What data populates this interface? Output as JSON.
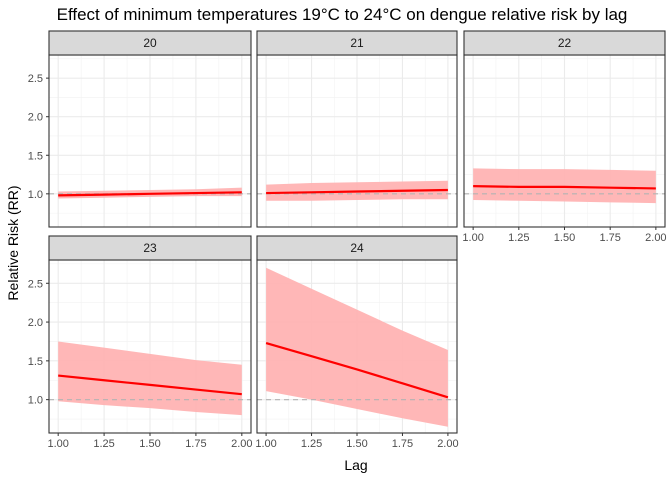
{
  "chart_data": {
    "type": "line",
    "title": "Effect of minimum temperatures 19°C to 24°C on dengue relative risk by lag",
    "xlabel": "Lag",
    "ylabel": "Relative Risk (RR)",
    "xlim": [
      0.95,
      2.05
    ],
    "ylim": [
      0.57,
      2.8
    ],
    "x_ticks": [
      "1.00",
      "1.25",
      "1.50",
      "1.75",
      "2.00"
    ],
    "y_ticks": [
      "1.0",
      "1.5",
      "2.0",
      "2.5"
    ],
    "reference_line": 1.0,
    "grid": true,
    "colors": {
      "fit": "#ff0000",
      "ribbon": "#ffb3b3",
      "reference": "#b3b3b3",
      "strip": "#d9d9d9"
    },
    "x": [
      1.0,
      1.25,
      1.5,
      1.75,
      2.0
    ],
    "panels": [
      {
        "label": "20",
        "fit": [
          0.98,
          0.99,
          1.0,
          1.01,
          1.02
        ],
        "upper": [
          1.03,
          1.04,
          1.05,
          1.06,
          1.08
        ],
        "lower": [
          0.94,
          0.95,
          0.96,
          0.97,
          0.97
        ]
      },
      {
        "label": "21",
        "fit": [
          1.01,
          1.02,
          1.03,
          1.04,
          1.05
        ],
        "upper": [
          1.12,
          1.14,
          1.15,
          1.16,
          1.17
        ],
        "lower": [
          0.91,
          0.91,
          0.92,
          0.93,
          0.93
        ]
      },
      {
        "label": "22",
        "fit": [
          1.1,
          1.09,
          1.09,
          1.08,
          1.07
        ],
        "upper": [
          1.33,
          1.32,
          1.32,
          1.31,
          1.3
        ],
        "lower": [
          0.92,
          0.91,
          0.9,
          0.89,
          0.88
        ]
      },
      {
        "label": "23",
        "fit": [
          1.31,
          1.25,
          1.19,
          1.13,
          1.07
        ],
        "upper": [
          1.75,
          1.67,
          1.59,
          1.51,
          1.45
        ],
        "lower": [
          0.98,
          0.93,
          0.89,
          0.84,
          0.8
        ]
      },
      {
        "label": "24",
        "fit": [
          1.73,
          1.56,
          1.39,
          1.21,
          1.03
        ],
        "upper": [
          2.7,
          2.43,
          2.16,
          1.89,
          1.64
        ],
        "lower": [
          1.11,
          1.0,
          0.88,
          0.76,
          0.65
        ]
      }
    ]
  }
}
